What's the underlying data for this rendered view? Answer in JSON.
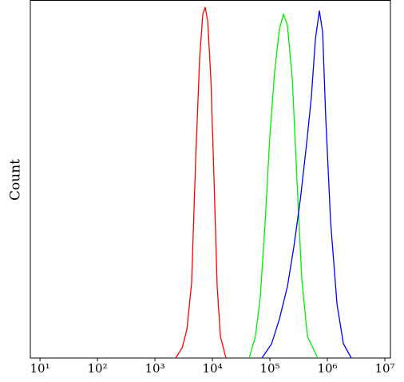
{
  "chart_data": {
    "type": "line",
    "y_label": "Count",
    "x_scale": "log",
    "xlim": [
      6.8,
      12500000
    ],
    "ylim": [
      0,
      100
    ],
    "xticks": [
      {
        "value": 10,
        "label": "10¹"
      },
      {
        "value": 100,
        "label": "10²"
      },
      {
        "value": 1000,
        "label": "10³"
      },
      {
        "value": 10000,
        "label": "10⁴"
      },
      {
        "value": 100000,
        "label": "10⁵"
      },
      {
        "value": 1000000,
        "label": "10⁶"
      },
      {
        "value": 10000000,
        "label": "10⁷"
      }
    ],
    "series": [
      {
        "color": "#ff0000",
        "x": [
          2300,
          3000,
          3600,
          4350,
          5100,
          6000,
          6800,
          7500,
          8300,
          9400,
          10700,
          12100,
          13800,
          17200
        ],
        "values": [
          0,
          3,
          8,
          21,
          55,
          84,
          96,
          98,
          94,
          78,
          49,
          20,
          6,
          0
        ]
      },
      {
        "color": "#00ee00",
        "x": [
          43500,
          56000,
          68000,
          82600,
          100000,
          121000,
          147000,
          172000,
          202000,
          245000,
          297000,
          359000,
          450000,
          681000
        ],
        "values": [
          0,
          6,
          17,
          38,
          62,
          80,
          92,
          96,
          93,
          78,
          49,
          22,
          6,
          0
        ]
      },
      {
        "color": "#0000ff",
        "x": [
          72600,
          107000,
          147000,
          202000,
          261000,
          337000,
          436000,
          527000,
          619000,
          726000,
          826000,
          938000,
          1140000,
          1470000,
          1900000,
          2610000
        ],
        "values": [
          0,
          4,
          11,
          20,
          31,
          44,
          60,
          73,
          89,
          97,
          91,
          67,
          38,
          15,
          4,
          0
        ]
      }
    ]
  }
}
